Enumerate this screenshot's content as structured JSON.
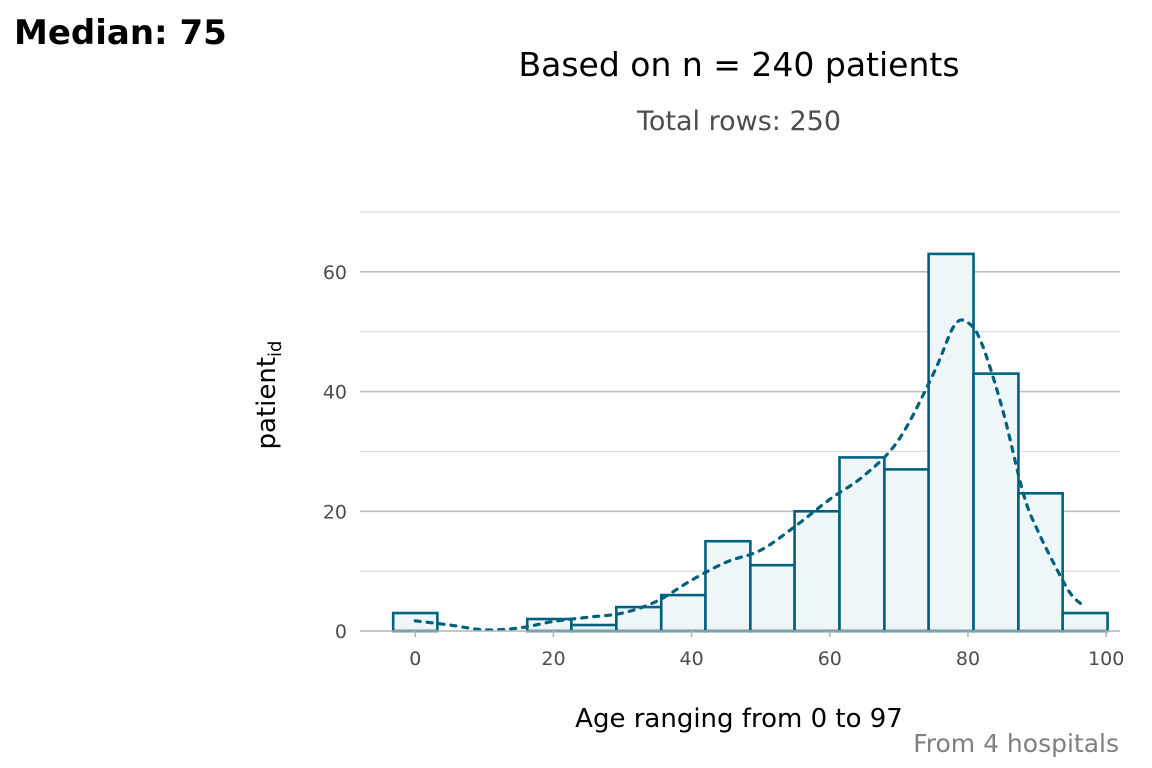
{
  "chart_data": {
    "type": "bar",
    "tag": "Median: 75",
    "title": "Based on n = 240 patients",
    "subtitle": "Total rows: 250",
    "xlabel": "Age ranging from 0 to 97",
    "ylabel_main": "patient",
    "ylabel_sub": "id",
    "caption": "From 4 hospitals",
    "xlim": [
      -8,
      102
    ],
    "ylim": [
      0,
      70
    ],
    "x_ticks": [
      0,
      20,
      40,
      60,
      80,
      100
    ],
    "y_ticks": [
      0,
      20,
      40,
      60
    ],
    "grid": true,
    "bar_color": "#00617f",
    "bar_fill": "#eef6f9",
    "density_color": "#00617f",
    "bins": [
      {
        "x_start": -3.2,
        "x_end": 3.2,
        "count": 3
      },
      {
        "x_start": 3.2,
        "x_end": 9.7,
        "count": 0
      },
      {
        "x_start": 9.7,
        "x_end": 16.2,
        "count": 0
      },
      {
        "x_start": 16.2,
        "x_end": 22.6,
        "count": 2
      },
      {
        "x_start": 22.6,
        "x_end": 29.1,
        "count": 1
      },
      {
        "x_start": 29.1,
        "x_end": 35.6,
        "count": 4
      },
      {
        "x_start": 35.6,
        "x_end": 42.0,
        "count": 6
      },
      {
        "x_start": 42.0,
        "x_end": 48.5,
        "count": 15
      },
      {
        "x_start": 48.5,
        "x_end": 54.9,
        "count": 11
      },
      {
        "x_start": 54.9,
        "x_end": 61.4,
        "count": 20
      },
      {
        "x_start": 61.4,
        "x_end": 67.9,
        "count": 29
      },
      {
        "x_start": 67.9,
        "x_end": 74.3,
        "count": 27
      },
      {
        "x_start": 74.3,
        "x_end": 80.8,
        "count": 63
      },
      {
        "x_start": 80.8,
        "x_end": 87.3,
        "count": 43
      },
      {
        "x_start": 87.3,
        "x_end": 93.7,
        "count": 23
      },
      {
        "x_start": 93.7,
        "x_end": 100.2,
        "count": 3
      }
    ],
    "density": {
      "x": [
        0,
        5,
        10,
        15,
        20,
        25,
        30,
        35,
        40,
        45,
        50,
        55,
        60,
        65,
        70,
        75,
        78,
        80,
        82,
        85,
        88,
        90,
        93,
        95,
        97
      ],
      "y": [
        1.7,
        1.0,
        0.2,
        0.5,
        1.6,
        2.3,
        3.0,
        5.0,
        8.5,
        11.5,
        13.5,
        17.5,
        22.0,
        26.0,
        32.0,
        43.0,
        51.0,
        51.5,
        48.0,
        37.0,
        23.0,
        17.0,
        10.0,
        6.0,
        4.0
      ]
    }
  }
}
